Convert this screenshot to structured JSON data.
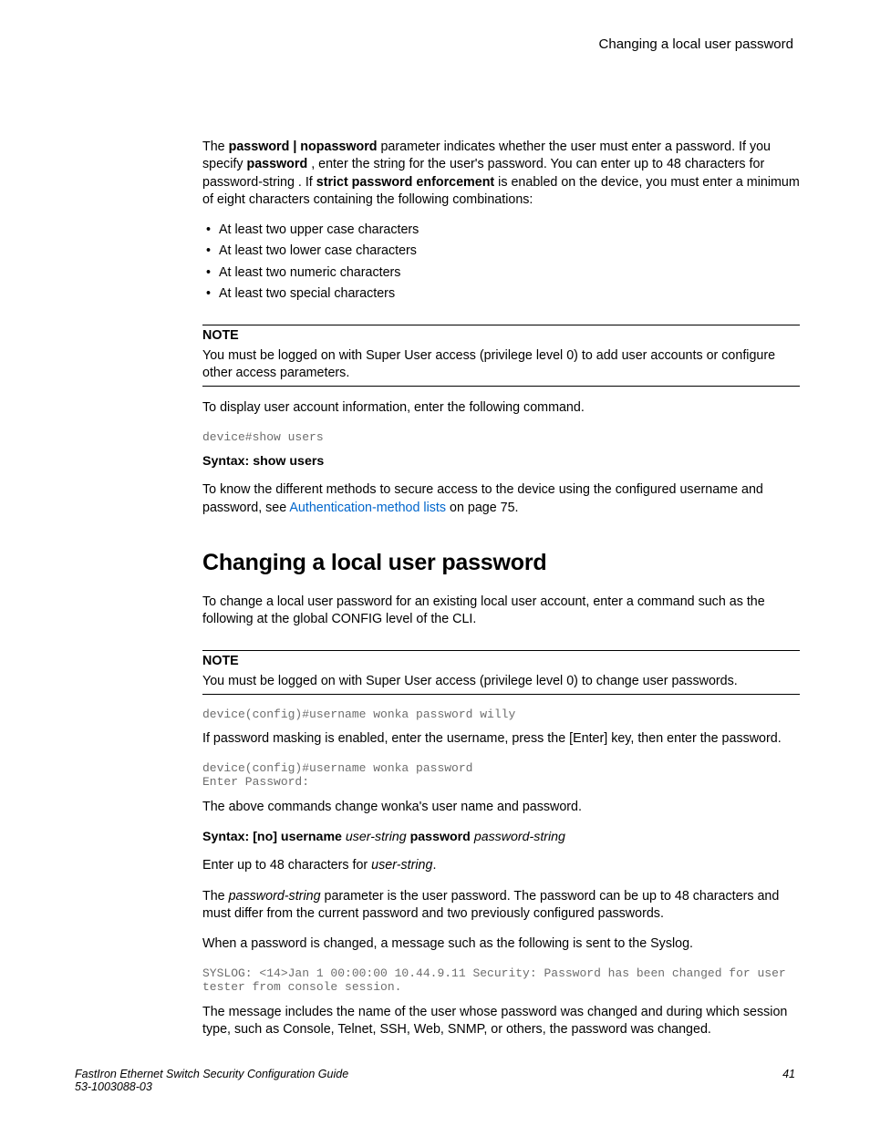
{
  "header": {
    "running_title": "Changing a local user password"
  },
  "intro": {
    "p1_a": "The ",
    "p1_b": "password | nopassword",
    "p1_c": " parameter indicates whether the user must enter a password. If you specify ",
    "p1_d": "password",
    "p1_e": " , enter the string for the user's password. You can enter up to 48 characters for password-string . If ",
    "p1_f": "strict password enforcement",
    "p1_g": " is enabled on the device, you must enter a minimum of eight characters containing the following combinations:"
  },
  "bullets": [
    "At least two upper case characters",
    "At least two lower case characters",
    "At least two numeric characters",
    "At least two special characters"
  ],
  "note1": {
    "label": "NOTE",
    "body": "You must be logged on with Super User access (privilege level 0) to add user accounts or configure other access parameters."
  },
  "display_cmd_intro": "To display user account information, enter the following command.",
  "code1": "device#show users",
  "syntax1": "Syntax: show users",
  "know_a": "To know the different methods to secure access to the device using the configured username and password, see ",
  "know_link": "Authentication-method lists",
  "know_b": " on page 75.",
  "heading": "Changing a local user password",
  "change_intro": "To change a local user password for an existing local user account, enter a command such as the following at the global CONFIG level of the CLI.",
  "note2": {
    "label": "NOTE",
    "body": "You must be logged on with Super User access (privilege level 0) to change user passwords."
  },
  "code2": "device(config)#username wonka password willy",
  "mask_intro": "If password masking is enabled, enter the username, press the [Enter] key, then enter the password.",
  "code3": "device(config)#username wonka password\nEnter Password:",
  "above": "The above commands change wonka's user name and password.",
  "syntax2_a": "Syntax: [no] username",
  "syntax2_b": "user-string",
  "syntax2_c": "password",
  "syntax2_d": "password-string",
  "enter48_a": "Enter up to 48 characters for ",
  "enter48_b": "user-string",
  "enter48_c": ".",
  "pwd_a": "The ",
  "pwd_b": "password-string",
  "pwd_c": " parameter is the user password. The password can be up to 48 characters and must differ from the current password and two previously configured passwords.",
  "syslog_intro": "When a password is changed, a message such as the following is sent to the Syslog.",
  "code4": "SYSLOG: <14>Jan 1 00:00:00 10.44.9.11 Security: Password has been changed for user tester from console session.",
  "msg_includes": "The message includes the name of the user whose password was changed and during which session type, such as Console, Telnet, SSH, Web, SNMP, or others, the password was changed.",
  "footer": {
    "title": "FastIron Ethernet Switch Security Configuration Guide",
    "docnum": "53-1003088-03",
    "page": "41"
  }
}
